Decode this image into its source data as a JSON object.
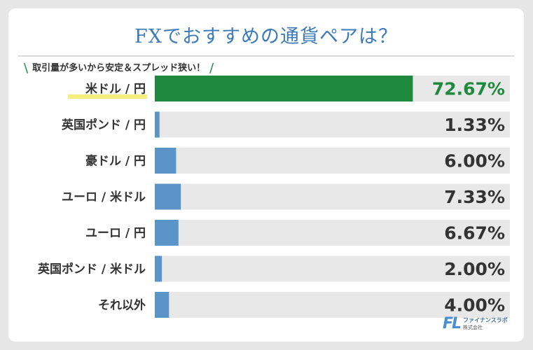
{
  "title": "FXでおすすめの通貨ペアは？",
  "subtitle": "取引量が多いから安定＆スプレッド狭い！",
  "subtitle_slash_left": "\\",
  "subtitle_slash_right": "/",
  "colors": {
    "top_bar": "#1f8a3e",
    "bar": "#5b94c8",
    "track": "#e8e8e8",
    "highlight": "#f5ee7a"
  },
  "logo": {
    "mark": "FL",
    "name": "ファイナンスラボ",
    "corp": "株式会社"
  },
  "chart_data": {
    "type": "bar",
    "orientation": "horizontal",
    "categories": [
      "米ドル / 円",
      "英国ポンド / 円",
      "豪ドル / 円",
      "ユーロ / 米ドル",
      "ユーロ / 円",
      "英国ポンド / 米ドル",
      "それ以外"
    ],
    "values": [
      72.67,
      1.33,
      6.0,
      7.33,
      6.67,
      2.0,
      4.0
    ],
    "value_labels": [
      "72.67%",
      "1.33%",
      "6.00%",
      "7.33%",
      "6.67%",
      "2.00%",
      "4.00%"
    ],
    "unit": "%",
    "xlim": [
      0,
      100
    ],
    "highlight_index": 0,
    "grid": false,
    "legend": "none"
  }
}
